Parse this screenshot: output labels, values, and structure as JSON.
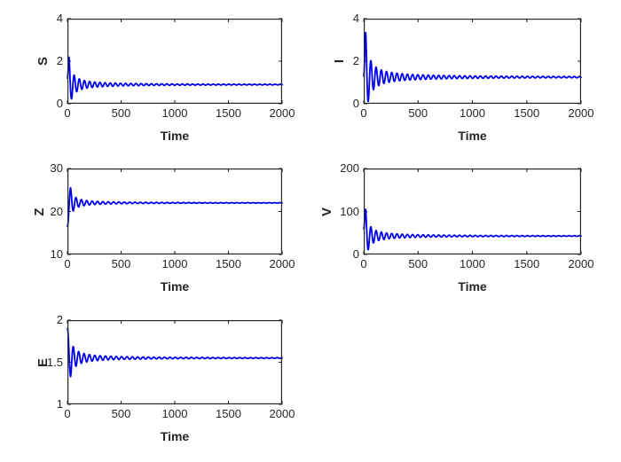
{
  "figure": {
    "background": "#ffffff",
    "frame_color": "#262626",
    "text_color": "#262626",
    "line_color": "#0000EE"
  },
  "chart_data": [
    {
      "type": "line",
      "title": "",
      "xlabel": "Time",
      "ylabel": "S",
      "xlim": [
        0,
        2000
      ],
      "ylim": [
        0,
        4
      ],
      "xticks": [
        "0",
        "500",
        "1000",
        "1500",
        "2000"
      ],
      "yticks": [
        "0",
        "2",
        "4"
      ],
      "xtick_values": [
        0,
        500,
        1000,
        1500,
        2000
      ],
      "ytick_values": [
        0,
        2,
        4
      ],
      "grid": false,
      "legend": null,
      "line_color": "#0000EE",
      "behavior": "damped oscillation converging to equilibrium",
      "model": {
        "initial_value": 1.2,
        "first_extremum": {
          "t": 15,
          "y": 2.2
        },
        "equilibrium": 0.9,
        "period": 48,
        "decay_k": 25
      }
    },
    {
      "type": "line",
      "title": "",
      "xlabel": "Time",
      "ylabel": "I",
      "xlim": [
        0,
        2000
      ],
      "ylim": [
        0,
        4
      ],
      "xticks": [
        "0",
        "500",
        "1000",
        "1500",
        "2000"
      ],
      "yticks": [
        "0",
        "2",
        "4"
      ],
      "xtick_values": [
        0,
        500,
        1000,
        1500,
        2000
      ],
      "ytick_values": [
        0,
        2,
        4
      ],
      "grid": false,
      "legend": null,
      "line_color": "#0000EE",
      "behavior": "damped oscillation converging to equilibrium",
      "model": {
        "initial_value": 1.3,
        "first_extremum": {
          "t": 18,
          "y": 3.35
        },
        "equilibrium": 1.25,
        "period": 48,
        "decay_k": 28
      }
    },
    {
      "type": "line",
      "title": "",
      "xlabel": "Time",
      "ylabel": "Z",
      "xlim": [
        0,
        2000
      ],
      "ylim": [
        10,
        30
      ],
      "xticks": [
        "0",
        "500",
        "1000",
        "1500",
        "2000"
      ],
      "yticks": [
        "10",
        "20",
        "30"
      ],
      "xtick_values": [
        0,
        500,
        1000,
        1500,
        2000
      ],
      "ytick_values": [
        10,
        20,
        30
      ],
      "grid": false,
      "legend": null,
      "line_color": "#0000EE",
      "behavior": "damped oscillation converging to equilibrium",
      "model": {
        "initial_value": 16.5,
        "first_extremum": {
          "t": 30,
          "y": 25.5
        },
        "equilibrium": 22,
        "period": 50,
        "decay_k": 28
      }
    },
    {
      "type": "line",
      "title": "",
      "xlabel": "Time",
      "ylabel": "V",
      "xlim": [
        0,
        2000
      ],
      "ylim": [
        0,
        200
      ],
      "xticks": [
        "0",
        "500",
        "1000",
        "1500",
        "2000"
      ],
      "yticks": [
        "0",
        "100",
        "200"
      ],
      "xtick_values": [
        0,
        500,
        1000,
        1500,
        2000
      ],
      "ytick_values": [
        0,
        100,
        200
      ],
      "grid": false,
      "legend": null,
      "line_color": "#0000EE",
      "behavior": "damped oscillation converging to equilibrium",
      "model": {
        "initial_value": 60,
        "first_extremum": {
          "t": 18,
          "y": 105
        },
        "equilibrium": 43,
        "period": 48,
        "decay_k": 25
      }
    },
    {
      "type": "line",
      "title": "",
      "xlabel": "Time",
      "ylabel": "E",
      "xlim": [
        0,
        2000
      ],
      "ylim": [
        1,
        2
      ],
      "xticks": [
        "0",
        "500",
        "1000",
        "1500",
        "2000"
      ],
      "yticks": [
        "1",
        "1.5",
        "2"
      ],
      "xtick_values": [
        0,
        500,
        1000,
        1500,
        2000
      ],
      "ytick_values": [
        1,
        1.5,
        2
      ],
      "grid": false,
      "legend": null,
      "line_color": "#0000EE",
      "behavior": "damped oscillation converging to equilibrium",
      "model": {
        "initial_value": 1.9,
        "first_extremum": {
          "t": 30,
          "y": 1.33
        },
        "equilibrium": 1.55,
        "period": 50,
        "decay_k": 40
      }
    }
  ]
}
